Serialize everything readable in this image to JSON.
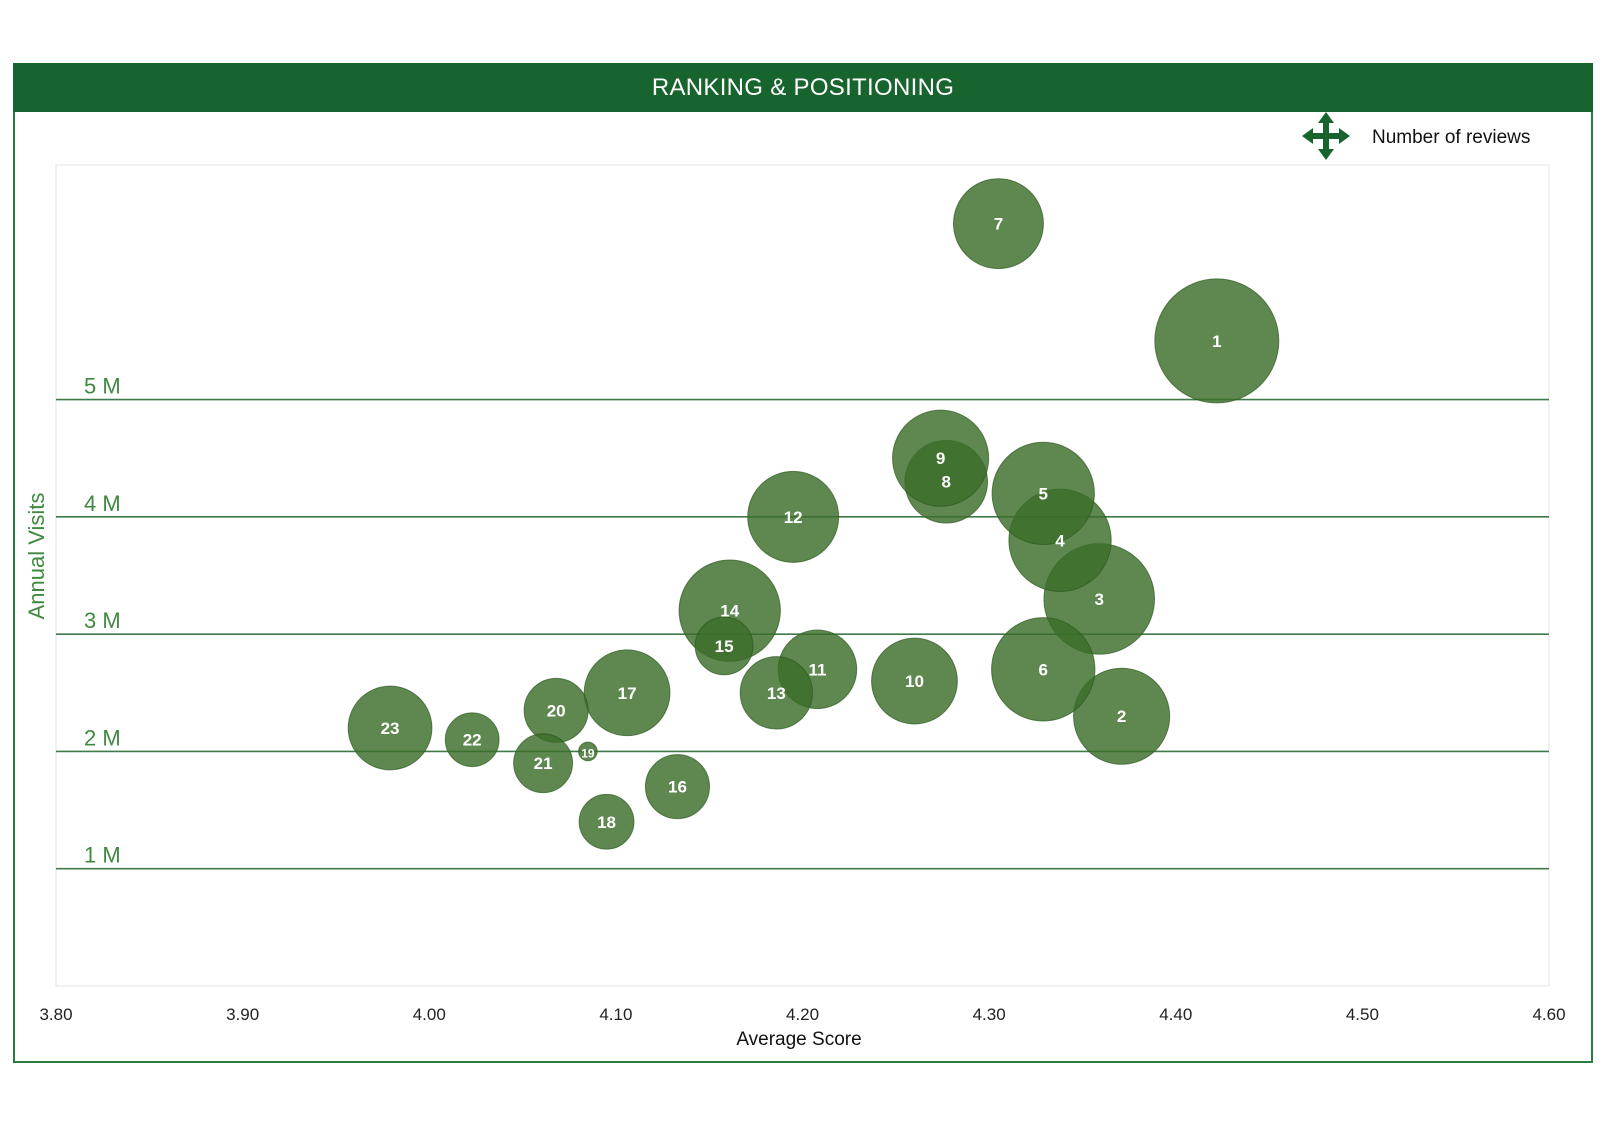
{
  "colors": {
    "header": "#18642e",
    "bubble": "#3b6e2a",
    "gridline": "#3f7a4a",
    "ytick": "#3f8a3f"
  },
  "header": {
    "title": "RANKING & POSITIONING"
  },
  "legend": {
    "icon": "four-way-arrow-icon",
    "label": "Number of reviews"
  },
  "chart_data": {
    "type": "scatter",
    "title": "RANKING & POSITIONING",
    "xlabel": "Average Score",
    "ylabel": "Annual Visits",
    "xlim": [
      3.8,
      4.6
    ],
    "ylim": [
      0,
      7
    ],
    "x_ticks": [
      "3.80",
      "3.90",
      "4.00",
      "4.10",
      "4.20",
      "4.30",
      "4.40",
      "4.50",
      "4.60"
    ],
    "y_ticks": [
      {
        "value": 1,
        "label": "1 M"
      },
      {
        "value": 2,
        "label": "2 M"
      },
      {
        "value": 3,
        "label": "3 M"
      },
      {
        "value": 4,
        "label": "4 M"
      },
      {
        "value": 5,
        "label": "5 M"
      }
    ],
    "size_legend": "Number of reviews",
    "grid": "horizontal",
    "points": [
      {
        "label": "1",
        "x": 4.422,
        "y": 5.5,
        "size": 1.2
      },
      {
        "label": "2",
        "x": 4.371,
        "y": 2.3,
        "size": 0.93
      },
      {
        "label": "3",
        "x": 4.359,
        "y": 3.3,
        "size": 1.07
      },
      {
        "label": "4",
        "x": 4.338,
        "y": 3.8,
        "size": 0.99
      },
      {
        "label": "5",
        "x": 4.329,
        "y": 4.2,
        "size": 0.99
      },
      {
        "label": "6",
        "x": 4.329,
        "y": 2.7,
        "size": 1.0
      },
      {
        "label": "7",
        "x": 4.305,
        "y": 6.5,
        "size": 0.87
      },
      {
        "label": "8",
        "x": 4.277,
        "y": 4.3,
        "size": 0.8
      },
      {
        "label": "9",
        "x": 4.274,
        "y": 4.5,
        "size": 0.93
      },
      {
        "label": "10",
        "x": 4.26,
        "y": 2.6,
        "size": 0.83
      },
      {
        "label": "11",
        "x": 4.208,
        "y": 2.7,
        "size": 0.76
      },
      {
        "label": "12",
        "x": 4.195,
        "y": 4.0,
        "size": 0.88
      },
      {
        "label": "13",
        "x": 4.186,
        "y": 2.5,
        "size": 0.7
      },
      {
        "label": "14",
        "x": 4.161,
        "y": 3.2,
        "size": 0.98
      },
      {
        "label": "15",
        "x": 4.158,
        "y": 2.9,
        "size": 0.56
      },
      {
        "label": "16",
        "x": 4.133,
        "y": 1.7,
        "size": 0.62
      },
      {
        "label": "17",
        "x": 4.106,
        "y": 2.5,
        "size": 0.83
      },
      {
        "label": "18",
        "x": 4.095,
        "y": 1.4,
        "size": 0.53
      },
      {
        "label": "19",
        "x": 4.085,
        "y": 2.0,
        "size": 0.18
      },
      {
        "label": "20",
        "x": 4.068,
        "y": 2.35,
        "size": 0.62
      },
      {
        "label": "21",
        "x": 4.061,
        "y": 1.9,
        "size": 0.57
      },
      {
        "label": "22",
        "x": 4.023,
        "y": 2.1,
        "size": 0.52
      },
      {
        "label": "23",
        "x": 3.979,
        "y": 2.2,
        "size": 0.81
      }
    ]
  }
}
